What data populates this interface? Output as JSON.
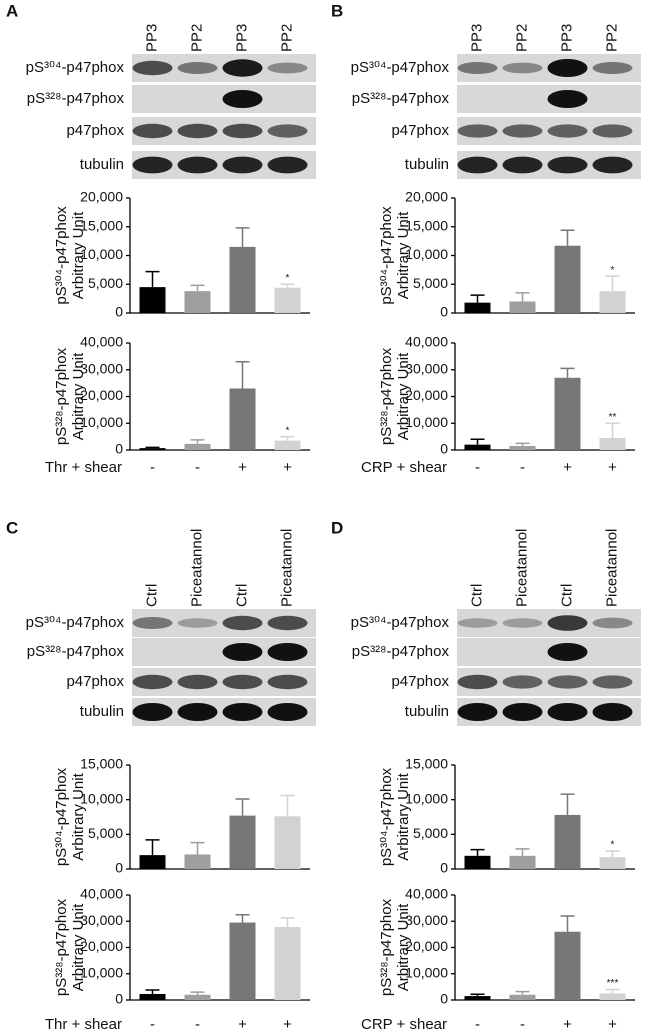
{
  "blots": [
    {
      "panel": "A",
      "lanes": [
        "PP3",
        "PP2",
        "PP3",
        "PP2"
      ],
      "rows": [
        "pS³⁰⁴-p47phox",
        "pS³²⁸-p47phox",
        "p47phox",
        "tubulin"
      ]
    },
    {
      "panel": "B",
      "lanes": [
        "PP3",
        "PP2",
        "PP3",
        "PP2"
      ],
      "rows": [
        "pS³⁰⁴-p47phox",
        "pS³²⁸-p47phox",
        "p47phox",
        "tubulin"
      ]
    },
    {
      "panel": "C",
      "lanes": [
        "Ctrl",
        "Piceatannol",
        "Ctrl",
        "Piceatannol"
      ],
      "rows": [
        "pS³⁰⁴-p47phox",
        "pS³²⁸-p47phox",
        "p47phox",
        "tubulin"
      ]
    },
    {
      "panel": "D",
      "lanes": [
        "Ctrl",
        "Piceatannol",
        "Ctrl",
        "Piceatannol"
      ],
      "rows": [
        "pS³⁰⁴-p47phox",
        "pS³²⁸-p47phox",
        "p47phox",
        "tubulin"
      ]
    }
  ],
  "chart_data": [
    {
      "type": "bar",
      "ylabel": [
        "pS³⁰⁴-p47phox",
        "Arbitrary Unit"
      ],
      "values": [
        4500,
        3800,
        11500,
        4400
      ],
      "error": [
        2700,
        1000,
        3300,
        600
      ],
      "sig_labels": [
        null,
        null,
        null,
        "*"
      ],
      "colors": [
        "#000000",
        "#9e9e9e",
        "#777777",
        "#d2d2d2"
      ],
      "ylim": [
        0,
        20000
      ],
      "yticks": [
        0,
        {
          "value": 5000,
          "label": "5,000"
        },
        {
          "value": 10000,
          "label": "10,000"
        },
        {
          "value": 15000,
          "label": "15,000"
        },
        {
          "value": 20000,
          "label": "20,000"
        }
      ]
    },
    {
      "type": "bar",
      "ylabel": [
        "pS³²⁸-p47phox",
        "Arbitrary Unit"
      ],
      "xlabel": "Thr + shear",
      "categories": [
        "-",
        "-",
        "+",
        "+"
      ],
      "values": [
        700,
        2300,
        23000,
        3500
      ],
      "error": [
        300,
        1500,
        10000,
        1500
      ],
      "sig_labels": [
        null,
        null,
        null,
        "*"
      ],
      "colors": [
        "#000000",
        "#9e9e9e",
        "#777777",
        "#d2d2d2"
      ],
      "ylim": [
        0,
        40000
      ],
      "yticks": [
        0,
        {
          "value": 10000,
          "label": "10,000"
        },
        {
          "value": 20000,
          "label": "20,000"
        },
        {
          "value": 30000,
          "label": "30,000"
        },
        {
          "value": 40000,
          "label": "40,000"
        }
      ]
    },
    {
      "type": "bar",
      "ylabel": [
        "pS³⁰⁴-p47phox",
        "Arbitrary Unit"
      ],
      "values": [
        1800,
        2000,
        11700,
        3800
      ],
      "error": [
        1300,
        1500,
        2700,
        2600
      ],
      "sig_labels": [
        null,
        null,
        null,
        "*"
      ],
      "colors": [
        "#000000",
        "#9e9e9e",
        "#777777",
        "#d2d2d2"
      ],
      "ylim": [
        0,
        20000
      ],
      "yticks": [
        0,
        {
          "value": 5000,
          "label": "5,000"
        },
        {
          "value": 10000,
          "label": "10,000"
        },
        {
          "value": 15000,
          "label": "15,000"
        },
        {
          "value": 20000,
          "label": "20,000"
        }
      ]
    },
    {
      "type": "bar",
      "ylabel": [
        "pS³²⁸-p47phox",
        "Arbitrary Unit"
      ],
      "xlabel": "CRP + shear",
      "categories": [
        "-",
        "-",
        "+",
        "+"
      ],
      "values": [
        2000,
        1500,
        27000,
        4500
      ],
      "error": [
        2000,
        1000,
        3500,
        5500
      ],
      "sig_labels": [
        null,
        null,
        null,
        "**"
      ],
      "colors": [
        "#000000",
        "#9e9e9e",
        "#777777",
        "#d2d2d2"
      ],
      "ylim": [
        0,
        40000
      ],
      "yticks": [
        0,
        {
          "value": 10000,
          "label": "10,000"
        },
        {
          "value": 20000,
          "label": "20,000"
        },
        {
          "value": 30000,
          "label": "30,000"
        },
        {
          "value": 40000,
          "label": "40,000"
        }
      ]
    },
    {
      "type": "bar",
      "ylabel": [
        "pS³⁰⁴-p47phox",
        "Arbitrary Unit"
      ],
      "values": [
        2000,
        2100,
        7700,
        7600
      ],
      "error": [
        2200,
        1700,
        2400,
        3000
      ],
      "colors": [
        "#000000",
        "#9e9e9e",
        "#777777",
        "#d2d2d2"
      ],
      "ylim": [
        0,
        15000
      ],
      "yticks": [
        0,
        {
          "value": 5000,
          "label": "5,000"
        },
        {
          "value": 10000,
          "label": "10,000"
        },
        {
          "value": 15000,
          "label": "15,000"
        }
      ]
    },
    {
      "type": "bar",
      "ylabel": [
        "pS³²⁸-p47phox",
        "Arbitrary Unit"
      ],
      "xlabel": "Thr + shear",
      "categories": [
        "-",
        "-",
        "+",
        "+"
      ],
      "values": [
        2300,
        2000,
        29500,
        27800
      ],
      "error": [
        1500,
        1000,
        3000,
        3500
      ],
      "colors": [
        "#000000",
        "#9e9e9e",
        "#777777",
        "#d2d2d2"
      ],
      "ylim": [
        0,
        40000
      ],
      "yticks": [
        0,
        {
          "value": 10000,
          "label": "10,000"
        },
        {
          "value": 20000,
          "label": "20,000"
        },
        {
          "value": 30000,
          "label": "30,000"
        },
        {
          "value": 40000,
          "label": "40,000"
        }
      ]
    },
    {
      "type": "bar",
      "ylabel": [
        "pS³⁰⁴-p47phox",
        "Arbitrary Unit"
      ],
      "values": [
        1900,
        1900,
        7800,
        1700
      ],
      "error": [
        900,
        1000,
        3000,
        900
      ],
      "sig_labels": [
        null,
        null,
        null,
        "*"
      ],
      "colors": [
        "#000000",
        "#9e9e9e",
        "#777777",
        "#d2d2d2"
      ],
      "ylim": [
        0,
        15000
      ],
      "yticks": [
        0,
        {
          "value": 5000,
          "label": "5,000"
        },
        {
          "value": 10000,
          "label": "10,000"
        },
        {
          "value": 15000,
          "label": "15,000"
        }
      ]
    },
    {
      "type": "bar",
      "ylabel": [
        "pS³²⁸-p47phox",
        "Arbitrary Unit"
      ],
      "xlabel": "CRP + shear",
      "categories": [
        "-",
        "-",
        "+",
        "+"
      ],
      "values": [
        1500,
        2000,
        26000,
        2500
      ],
      "error": [
        700,
        1200,
        6000,
        1500
      ],
      "sig_labels": [
        null,
        null,
        null,
        "***"
      ],
      "colors": [
        "#000000",
        "#9e9e9e",
        "#777777",
        "#d2d2d2"
      ],
      "ylim": [
        0,
        40000
      ],
      "yticks": [
        0,
        {
          "value": 10000,
          "label": "10,000"
        },
        {
          "value": 20000,
          "label": "20,000"
        },
        {
          "value": 30000,
          "label": "30,000"
        },
        {
          "value": 40000,
          "label": "40,000"
        }
      ]
    }
  ]
}
